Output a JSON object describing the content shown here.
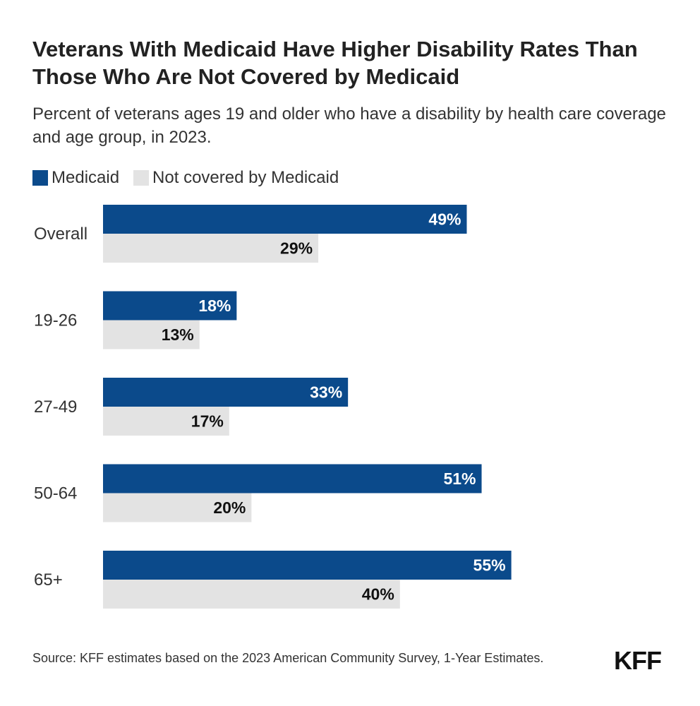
{
  "title": "Veterans With Medicaid Have Higher Disability Rates Than Those Who Are Not Covered by Medicaid",
  "subtitle": "Percent of veterans ages 19 and older who have a disability by health care coverage and age group, in 2023.",
  "legend": {
    "medicaid": "Medicaid",
    "not_covered": "Not covered by Medicaid"
  },
  "colors": {
    "medicaid": "#0b4a8b",
    "not_covered": "#e3e3e3",
    "medicaid_label": "#ffffff",
    "not_covered_label": "#111111"
  },
  "chart_data": {
    "type": "bar",
    "orientation": "horizontal",
    "title": "Veterans With Medicaid Have Higher Disability Rates Than Those Who Are Not Covered by Medicaid",
    "categories": [
      "Overall",
      "19-26",
      "27-49",
      "50-64",
      "65+"
    ],
    "series": [
      {
        "name": "Medicaid",
        "values": [
          49,
          18,
          33,
          51,
          55
        ],
        "labels": [
          "49%",
          "18%",
          "33%",
          "51%",
          "55%"
        ]
      },
      {
        "name": "Not covered by Medicaid",
        "values": [
          29,
          13,
          17,
          20,
          40
        ],
        "labels": [
          "29%",
          "13%",
          "17%",
          "20%",
          "40%"
        ]
      }
    ],
    "xlabel": "",
    "ylabel": "",
    "xlim": [
      0,
      100
    ],
    "grid": false,
    "legend_position": "top-left",
    "unit": "%"
  },
  "source": "Source: KFF estimates based on the 2023 American Community Survey, 1-Year Estimates.",
  "logo": "KFF"
}
